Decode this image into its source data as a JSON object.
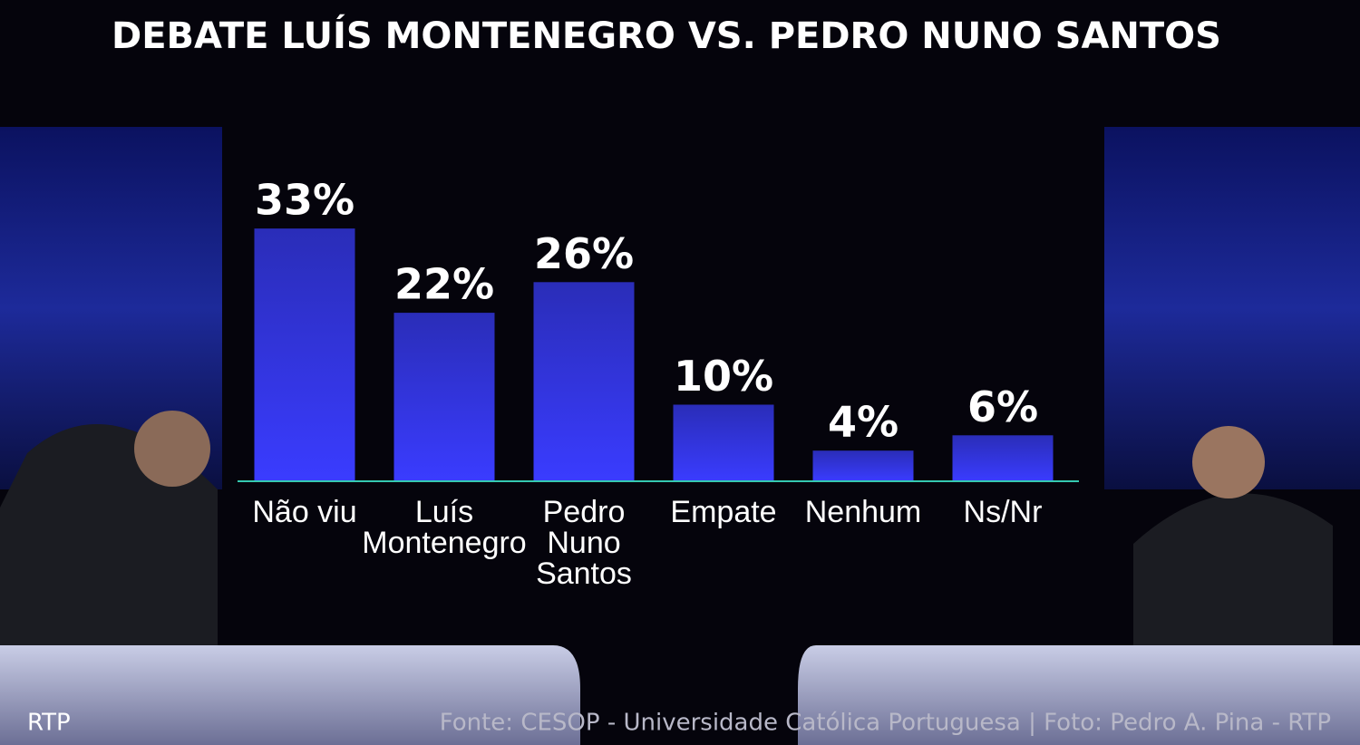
{
  "chart_data": {
    "type": "bar",
    "title": "DEBATE LUÍS MONTENEGRO VS. PEDRO NUNO SANTOS",
    "categories": [
      "Não viu",
      "Luís\nMontenegro",
      "Pedro\nNuno\nSantos",
      "Empate",
      "Nenhum",
      "Ns/Nr"
    ],
    "values": [
      33,
      22,
      26,
      10,
      4,
      6
    ],
    "value_labels": [
      "33%",
      "22%",
      "26%",
      "10%",
      "4%",
      "6%"
    ],
    "color": "#3a3cff",
    "baseline_color": "#35c9b0",
    "credit": "RTP",
    "source": "Fonte: CESOP - Universidade Católica Portuguesa | Foto: Pedro A. Pina - RTP"
  }
}
